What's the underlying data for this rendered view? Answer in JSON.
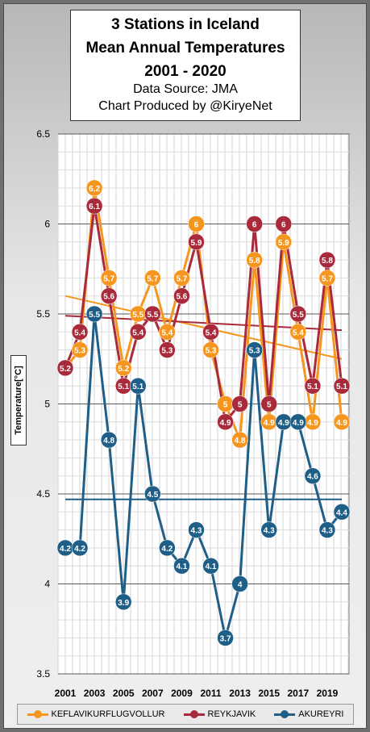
{
  "chart_data": {
    "type": "line",
    "title_lines": [
      "3 Stations in Iceland",
      "Mean Annual Temperatures",
      "2001 - 2020"
    ],
    "subtitle_lines": [
      "Data Source: JMA",
      "Chart Produced by @KiryeNet"
    ],
    "ylabel": "Temperature[°C]",
    "xlabel": "",
    "ylim": [
      3.5,
      6.5
    ],
    "yticks": [
      "3.5",
      "4",
      "4.5",
      "5",
      "5.5",
      "6",
      "6.5"
    ],
    "x": [
      2001,
      2002,
      2003,
      2004,
      2005,
      2006,
      2007,
      2008,
      2009,
      2010,
      2011,
      2012,
      2013,
      2014,
      2015,
      2016,
      2017,
      2018,
      2019,
      2020
    ],
    "xtick_labels": [
      "2001",
      "2003",
      "2005",
      "2007",
      "2009",
      "2011",
      "2013",
      "2015",
      "2017",
      "2019"
    ],
    "grid": true,
    "legend_position": "bottom",
    "series": [
      {
        "name": "KEFLAVIKURFLUGVOLLUR",
        "color": "#f5961e",
        "values": [
          5.2,
          5.3,
          6.2,
          5.7,
          5.2,
          5.5,
          5.7,
          5.4,
          5.7,
          6.0,
          5.3,
          5.0,
          4.8,
          5.8,
          4.9,
          5.9,
          5.4,
          4.9,
          5.7,
          4.9
        ],
        "labels": [
          "",
          "5.3",
          "6.2",
          "5.7",
          "5.2",
          "5.5",
          "5.7",
          "5.4",
          "5.7",
          "6",
          "5.3",
          "5",
          "4.8",
          "5.8",
          "4.9",
          "5.9",
          "5.4",
          "4.9",
          "5.7",
          "4.9"
        ],
        "trend": [
          5.6,
          5.25
        ]
      },
      {
        "name": "REYKJAVIK",
        "color": "#a92a3a",
        "values": [
          5.2,
          5.4,
          6.1,
          5.6,
          5.1,
          5.4,
          5.5,
          5.3,
          5.6,
          5.9,
          5.4,
          4.9,
          5.0,
          6.0,
          5.0,
          6.0,
          5.5,
          5.1,
          5.8,
          5.1
        ],
        "labels": [
          "5.2",
          "5.4",
          "6.1",
          "5.6",
          "5.1",
          "5.4",
          "5.5",
          "5.3",
          "5.6",
          "5.9",
          "5.4",
          "4.9",
          "5",
          "6",
          "5",
          "6",
          "5.5",
          "5.1",
          "5.8",
          "5.1"
        ],
        "trend": [
          5.49,
          5.41
        ]
      },
      {
        "name": "AKUREYRI",
        "color": "#1f5f87",
        "values": [
          4.2,
          4.2,
          5.5,
          4.8,
          3.9,
          5.1,
          4.5,
          4.2,
          4.1,
          4.3,
          4.1,
          3.7,
          4.0,
          5.3,
          4.3,
          4.9,
          4.9,
          4.6,
          4.3,
          4.4
        ],
        "labels": [
          "4.2",
          "4.2",
          "5.5",
          "4.8",
          "3.9",
          "5.1",
          "4.5",
          "4.2",
          "4.1",
          "4.3",
          "4.1",
          "3.7",
          "4",
          "5.3",
          "4.3",
          "4.9",
          "4.9",
          "4.6",
          "4.3",
          "4.4"
        ],
        "trend": [
          4.47,
          4.47
        ]
      }
    ]
  }
}
